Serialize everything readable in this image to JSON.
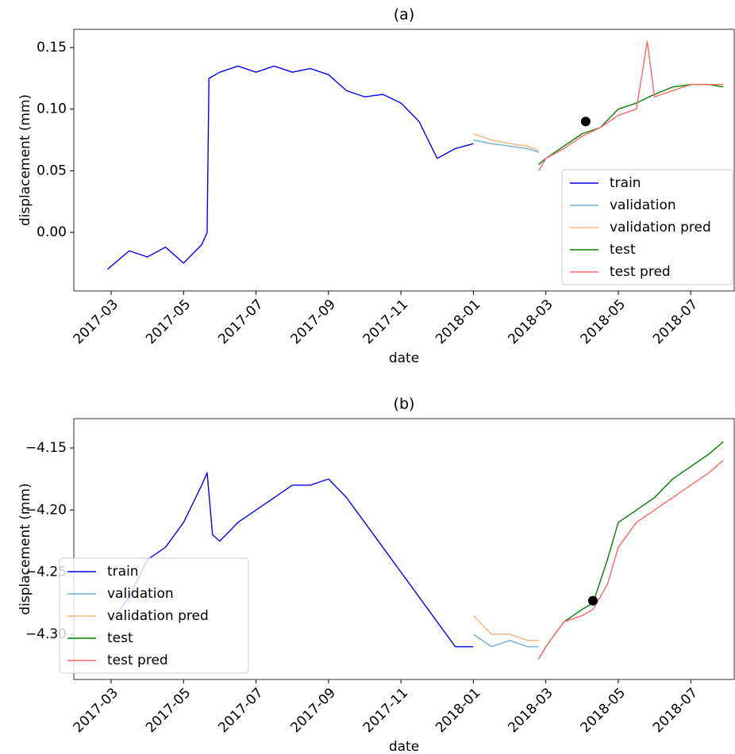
{
  "chart_data": [
    {
      "type": "line",
      "title": "(a)",
      "xlabel": "date",
      "ylabel": "displacement (mm)",
      "xlim": [
        -1.03,
        17.2
      ],
      "ylim": [
        -0.0476,
        0.1648
      ],
      "xticks": [
        {
          "value": 0,
          "label": "2017-03"
        },
        {
          "value": 2,
          "label": "2017-05"
        },
        {
          "value": 4,
          "label": "2017-07"
        },
        {
          "value": 6,
          "label": "2017-09"
        },
        {
          "value": 8,
          "label": "2017-11"
        },
        {
          "value": 10,
          "label": "2018-01"
        },
        {
          "value": 12,
          "label": "2018-03"
        },
        {
          "value": 14,
          "label": "2018-05"
        },
        {
          "value": 16,
          "label": "2018-07"
        }
      ],
      "yticks": [
        {
          "value": 0,
          "label": "0.00"
        },
        0.05,
        {
          "value": 0.1,
          "label": "0.10"
        },
        0.15
      ],
      "legend": "lower right",
      "series": [
        {
          "name": "train",
          "color": "#0000ff",
          "x": [
            -0.1,
            0.5,
            1,
            1.5,
            2,
            2.5,
            2.65,
            2.7,
            3,
            3.5,
            4,
            4.5,
            5,
            5.5,
            6,
            6.5,
            7,
            7.5,
            8,
            8.5,
            9,
            9.5,
            10
          ],
          "values": [
            -0.03,
            -0.015,
            -0.02,
            -0.012,
            -0.025,
            -0.01,
            0.0,
            0.125,
            0.13,
            0.135,
            0.13,
            0.135,
            0.13,
            0.133,
            0.128,
            0.115,
            0.11,
            0.112,
            0.105,
            0.09,
            0.06,
            0.068,
            0.072
          ]
        },
        {
          "name": "validation",
          "color": "#6baed6",
          "x": [
            10,
            10.5,
            11,
            11.5,
            11.8
          ],
          "values": [
            0.075,
            0.072,
            0.07,
            0.068,
            0.065
          ]
        },
        {
          "name": "validation pred",
          "color": "#f4b27a",
          "x": [
            10,
            10.5,
            11,
            11.5,
            11.8
          ],
          "values": [
            0.08,
            0.075,
            0.072,
            0.07,
            0.066
          ]
        },
        {
          "name": "test",
          "color": "#008000",
          "x": [
            11.8,
            12,
            12.5,
            13,
            13.5,
            14,
            14.5,
            15,
            15.5,
            16,
            16.5,
            16.9
          ],
          "values": [
            0.055,
            0.06,
            0.07,
            0.08,
            0.085,
            0.1,
            0.105,
            0.112,
            0.118,
            0.12,
            0.12,
            0.118
          ]
        },
        {
          "name": "test pred",
          "color": "#ff6666",
          "x": [
            11.8,
            12,
            12.5,
            13,
            13.5,
            14,
            14.5,
            14.8,
            15,
            15.5,
            16,
            16.5,
            16.9
          ],
          "values": [
            0.05,
            0.06,
            0.068,
            0.078,
            0.085,
            0.095,
            0.1,
            0.155,
            0.11,
            0.115,
            0.12,
            0.12,
            0.12
          ]
        }
      ],
      "marker": {
        "x": 13.1,
        "y": 0.09
      }
    },
    {
      "type": "line",
      "title": "(b)",
      "xlabel": "date",
      "ylabel": "displacement (mm)",
      "xlim": [
        -1.03,
        17.2
      ],
      "ylim": [
        -4.3364,
        -4.1264
      ],
      "xticks": [
        {
          "value": 0,
          "label": "2017-03"
        },
        {
          "value": 2,
          "label": "2017-05"
        },
        {
          "value": 4,
          "label": "2017-07"
        },
        {
          "value": 6,
          "label": "2017-09"
        },
        {
          "value": 8,
          "label": "2017-11"
        },
        {
          "value": 10,
          "label": "2018-01"
        },
        {
          "value": 12,
          "label": "2018-03"
        },
        {
          "value": 14,
          "label": "2018-05"
        },
        {
          "value": 16,
          "label": "2018-07"
        }
      ],
      "yticks": [
        {
          "value": -4.3,
          "label": "−4.30"
        },
        {
          "value": -4.25,
          "label": "−4.25"
        },
        {
          "value": -4.2,
          "label": "−4.20"
        },
        {
          "value": -4.15,
          "label": "−4.15"
        }
      ],
      "legend": "lower left",
      "series": [
        {
          "name": "train",
          "color": "#0000ff",
          "x": [
            0,
            0.5,
            1,
            1.5,
            2,
            2.5,
            2.65,
            2.8,
            3,
            3.5,
            4,
            4.5,
            5,
            5.5,
            6,
            6.5,
            7,
            7.5,
            8,
            8.5,
            9,
            9.5,
            10
          ],
          "values": [
            -4.29,
            -4.27,
            -4.24,
            -4.23,
            -4.21,
            -4.18,
            -4.17,
            -4.22,
            -4.225,
            -4.21,
            -4.2,
            -4.19,
            -4.18,
            -4.18,
            -4.175,
            -4.19,
            -4.21,
            -4.23,
            -4.25,
            -4.27,
            -4.29,
            -4.31,
            -4.31
          ]
        },
        {
          "name": "validation",
          "color": "#6baed6",
          "x": [
            10,
            10.5,
            11,
            11.5,
            11.8
          ],
          "values": [
            -4.3,
            -4.31,
            -4.305,
            -4.31,
            -4.31
          ]
        },
        {
          "name": "validation pred",
          "color": "#f4b27a",
          "x": [
            10,
            10.5,
            11,
            11.5,
            11.8
          ],
          "values": [
            -4.285,
            -4.3,
            -4.3,
            -4.305,
            -4.305
          ]
        },
        {
          "name": "test",
          "color": "#008000",
          "x": [
            11.8,
            12,
            12.5,
            13,
            13.3,
            13.7,
            14,
            14.5,
            15,
            15.5,
            16,
            16.5,
            16.9
          ],
          "values": [
            -4.32,
            -4.31,
            -4.29,
            -4.28,
            -4.275,
            -4.24,
            -4.21,
            -4.2,
            -4.19,
            -4.175,
            -4.165,
            -4.155,
            -4.145
          ]
        },
        {
          "name": "test pred",
          "color": "#ff6666",
          "x": [
            11.8,
            12,
            12.5,
            13,
            13.3,
            13.7,
            14,
            14.5,
            15,
            15.5,
            16,
            16.5,
            16.9
          ],
          "values": [
            -4.32,
            -4.31,
            -4.29,
            -4.285,
            -4.28,
            -4.26,
            -4.23,
            -4.21,
            -4.2,
            -4.19,
            -4.18,
            -4.17,
            -4.16
          ]
        }
      ],
      "marker": {
        "x": 13.3,
        "y": -4.273
      }
    }
  ]
}
